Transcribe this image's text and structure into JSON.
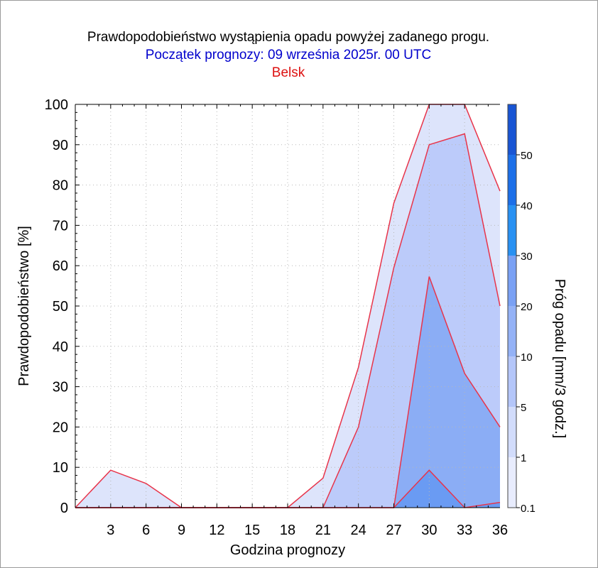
{
  "chart_data": {
    "type": "area",
    "title": "Prawdopodobieństwo wystąpienia opadu powyżej zadanego progu.",
    "subtitle": "Początek prognozy: 09 września 2025r. 00 UTC",
    "location": "Belsk",
    "xlabel": "Godzina prognozy",
    "ylabel": "Prawdopodobieństwo [%]",
    "colorbar_label": "Próg opadu [mm/3 godz.]",
    "colors": {
      "subtitle": "#0000cc",
      "location": "#dd1111",
      "line": "#e8344a"
    },
    "xlim": [
      0,
      36
    ],
    "ylim": [
      0,
      100
    ],
    "x_ticks": [
      3,
      6,
      9,
      12,
      15,
      18,
      21,
      24,
      27,
      30,
      33,
      36
    ],
    "y_ticks": [
      0,
      10,
      20,
      30,
      40,
      50,
      60,
      70,
      80,
      90,
      100
    ],
    "x": [
      0,
      3,
      6,
      9,
      12,
      15,
      18,
      21,
      24,
      27,
      30,
      33,
      36
    ],
    "series": [
      {
        "threshold": 0.1,
        "color": "#dde4fb",
        "values": [
          0,
          9.3,
          6,
          0,
          0,
          0,
          0,
          7.3,
          34.8,
          75.5,
          100,
          100,
          78.5
        ]
      },
      {
        "threshold": 1,
        "color": "#bccbfa",
        "values": [
          0,
          0,
          0,
          0,
          0,
          0,
          0,
          0,
          20,
          59.5,
          90,
          92.7,
          50
        ]
      },
      {
        "threshold": 5,
        "color": "#8badf5",
        "values": [
          0,
          0,
          0,
          0,
          0,
          0,
          0,
          0,
          0,
          0,
          57.3,
          33.3,
          20
        ]
      },
      {
        "threshold": 10,
        "color": "#6a9bf3",
        "values": [
          0,
          0,
          0,
          0,
          0,
          0,
          0,
          0,
          0,
          0,
          9.3,
          0,
          1.3
        ]
      }
    ],
    "colorbar": {
      "tick_labels": [
        "0.1",
        "1",
        "5",
        "10",
        "20",
        "30",
        "40",
        "50"
      ],
      "colors": [
        "#e8ecfd",
        "#d2dcfb",
        "#b4c6f9",
        "#94b2f6",
        "#7aa1f4",
        "#2891f2",
        "#1c6fe8",
        "#1855d4",
        "#163fb4"
      ]
    }
  }
}
